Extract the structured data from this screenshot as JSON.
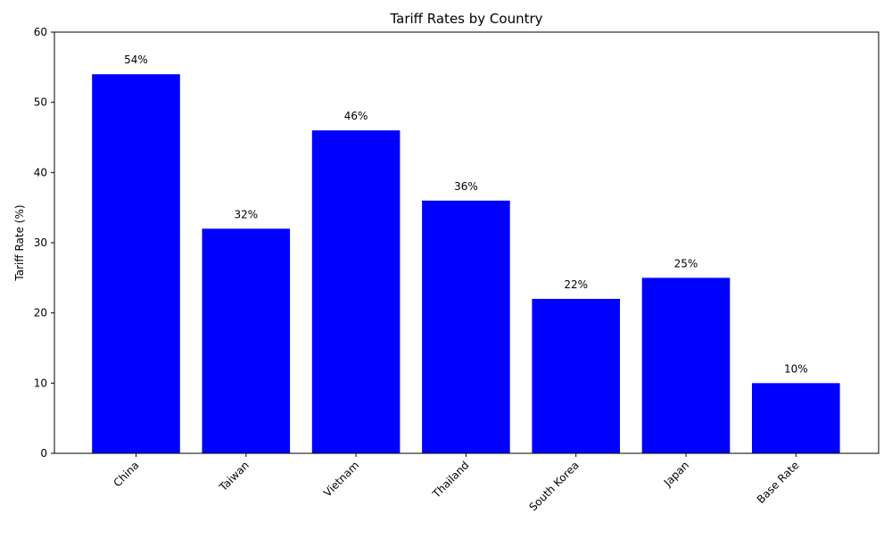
{
  "chart_data": {
    "type": "bar",
    "title": "Tariff Rates by Country",
    "xlabel": "",
    "ylabel": "Tariff Rate (%)",
    "categories": [
      "China",
      "Taiwan",
      "Vietnam",
      "Thailand",
      "South Korea",
      "Japan",
      "Base Rate"
    ],
    "values": [
      54,
      32,
      46,
      36,
      22,
      25,
      10
    ],
    "data_labels": [
      "54%",
      "32%",
      "46%",
      "36%",
      "22%",
      "25%",
      "10%"
    ],
    "ylim": [
      0,
      60
    ],
    "yticks": [
      0,
      10,
      20,
      30,
      40,
      50,
      60
    ],
    "ytick_labels": [
      "0",
      "10",
      "20",
      "30",
      "40",
      "50",
      "60"
    ],
    "grid": false,
    "bar_color": "#0000ff",
    "x_tick_rotation_deg": 45
  }
}
